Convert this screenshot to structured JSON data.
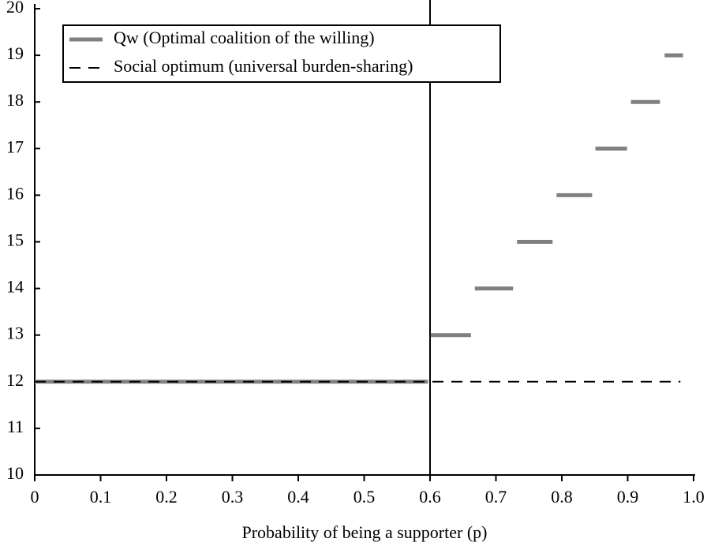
{
  "chart_data": {
    "type": "line",
    "xlabel": "Probability of being a supporter (p)",
    "xlim": [
      0,
      1
    ],
    "xticks": [
      0,
      0.1,
      0.2,
      0.3,
      0.4,
      0.5,
      0.6,
      0.7,
      0.8,
      0.9,
      {
        "value": 1,
        "label": "1.0"
      }
    ],
    "ylim": [
      10,
      20
    ],
    "yticks": [
      10,
      11,
      12,
      13,
      14,
      15,
      16,
      17,
      18,
      19,
      20
    ],
    "vline": 0.6,
    "series": [
      {
        "name": "Qw (Optimal coalition of the willing)",
        "color": "#808080",
        "dash": false,
        "x": [
          0,
          0.597,
          0.599,
          0.601,
          0.662,
          0.665,
          0.668,
          0.726,
          0.729,
          0.732,
          0.786,
          0.789,
          0.792,
          0.846,
          0.849,
          0.851,
          0.899,
          0.902,
          0.905,
          0.949,
          0.952,
          0.956,
          0.984
        ],
        "values": [
          12,
          12,
          null,
          13,
          13,
          null,
          14,
          14,
          null,
          15,
          15,
          null,
          16,
          16,
          null,
          17,
          17,
          null,
          18,
          18,
          null,
          19,
          19
        ]
      },
      {
        "name": "Social optimum (universal burden-sharing)",
        "color": "#000000",
        "dash": true,
        "x": [
          0,
          0.98
        ],
        "values": [
          12,
          12
        ]
      }
    ]
  }
}
